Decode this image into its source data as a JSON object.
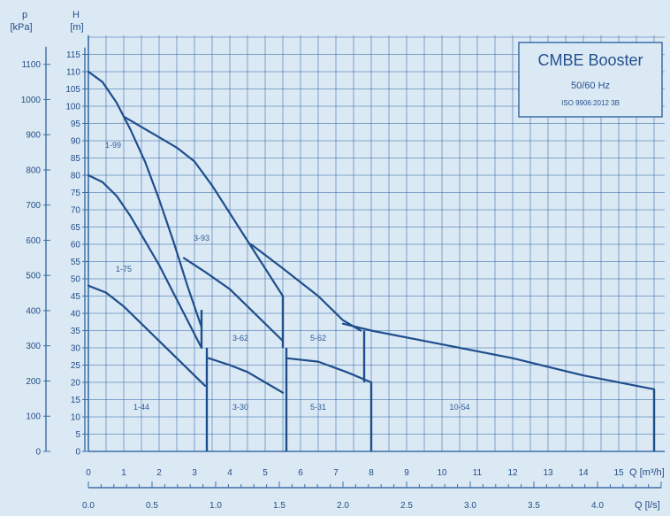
{
  "chart_data": {
    "type": "line",
    "title": "CMBE Booster",
    "subtitle": "50/60 Hz",
    "standard": "ISO 9906:2012 3B",
    "y_left_label": [
      "p",
      "[kPa]"
    ],
    "y_right_label": [
      "H",
      "[m]"
    ],
    "x_label": "Q [m³/h]",
    "x2_label": "Q [l/s]",
    "x_ticks": [
      "0",
      "1",
      "2",
      "3",
      "4",
      "5",
      "6",
      "7",
      "8",
      "9",
      "10",
      "11",
      "12",
      "13",
      "14",
      "15"
    ],
    "x2_ticks": [
      "0.0",
      "0.5",
      "1.0",
      "1.5",
      "2.0",
      "2.5",
      "3.0",
      "3.5",
      "4.0"
    ],
    "h_ticks": [
      "0",
      "5",
      "10",
      "15",
      "20",
      "25",
      "30",
      "35",
      "40",
      "45",
      "50",
      "55",
      "60",
      "65",
      "70",
      "75",
      "80",
      "85",
      "90",
      "95",
      "100",
      "105",
      "110",
      "115"
    ],
    "p_ticks": [
      "0",
      "100",
      "200",
      "300",
      "400",
      "500",
      "600",
      "700",
      "800",
      "900",
      "1000",
      "1100"
    ],
    "xlim": [
      0,
      16.5
    ],
    "ylim": [
      0,
      120
    ],
    "grid": true,
    "series": [
      {
        "name": "1-99",
        "points": [
          [
            0,
            110
          ],
          [
            0.4,
            107
          ],
          [
            0.8,
            101
          ],
          [
            1.2,
            93
          ],
          [
            1.6,
            84
          ],
          [
            2.0,
            73
          ],
          [
            2.4,
            61
          ],
          [
            2.8,
            48
          ],
          [
            3.2,
            36
          ]
        ]
      },
      {
        "name": "1-75",
        "points": [
          [
            0,
            80
          ],
          [
            0.4,
            78
          ],
          [
            0.8,
            74
          ],
          [
            1.2,
            68
          ],
          [
            1.6,
            61
          ],
          [
            2.0,
            54
          ],
          [
            2.4,
            46
          ],
          [
            2.8,
            38
          ],
          [
            3.2,
            30
          ]
        ]
      },
      {
        "name": "1-44",
        "points": [
          [
            0,
            48
          ],
          [
            0.5,
            46
          ],
          [
            1.0,
            42
          ],
          [
            1.5,
            37
          ],
          [
            2.0,
            32
          ],
          [
            2.5,
            27
          ],
          [
            3.0,
            22
          ],
          [
            3.3,
            19
          ]
        ]
      },
      {
        "name": "3-93",
        "points": [
          [
            1.0,
            97
          ],
          [
            1.5,
            94
          ],
          [
            2.0,
            91
          ],
          [
            2.5,
            88
          ],
          [
            3.0,
            84
          ],
          [
            3.5,
            77
          ],
          [
            4.0,
            69
          ],
          [
            4.5,
            61
          ],
          [
            5.0,
            53
          ],
          [
            5.5,
            45
          ]
        ]
      },
      {
        "name": "3-62",
        "points": [
          [
            2.7,
            56
          ],
          [
            3.3,
            52
          ],
          [
            4.0,
            47
          ],
          [
            4.6,
            41
          ],
          [
            5.2,
            35
          ],
          [
            5.5,
            32
          ]
        ]
      },
      {
        "name": "3-30",
        "points": [
          [
            3.4,
            27
          ],
          [
            4.0,
            25
          ],
          [
            4.5,
            23
          ],
          [
            5.0,
            20
          ],
          [
            5.5,
            17
          ]
        ]
      },
      {
        "name": "5-62",
        "points": [
          [
            4.6,
            60
          ],
          [
            5.5,
            53
          ],
          [
            6.5,
            45
          ],
          [
            7.2,
            38
          ],
          [
            7.7,
            35
          ]
        ]
      },
      {
        "name": "5-31",
        "points": [
          [
            5.6,
            27
          ],
          [
            6.5,
            26
          ],
          [
            7.3,
            23
          ],
          [
            8.0,
            20
          ]
        ]
      },
      {
        "name": "10-54",
        "points": [
          [
            7.2,
            37
          ],
          [
            8.0,
            35
          ],
          [
            10.0,
            31
          ],
          [
            12.0,
            27
          ],
          [
            14.0,
            22
          ],
          [
            16.0,
            18
          ]
        ]
      }
    ],
    "vertical_limits": [
      {
        "x": 3.2,
        "y_from": 41,
        "y_to": 30
      },
      {
        "x": 3.35,
        "y_from": 30,
        "y_to": 0
      },
      {
        "x": 5.5,
        "y_from": 45,
        "y_to": 30
      },
      {
        "x": 5.6,
        "y_from": 30,
        "y_to": 0
      },
      {
        "x": 7.8,
        "y_from": 35,
        "y_to": 20
      },
      {
        "x": 8.0,
        "y_from": 20,
        "y_to": 0
      },
      {
        "x": 16.0,
        "y_from": 18,
        "y_to": 0
      }
    ],
    "curve_labels": [
      {
        "text": "1-99",
        "x": 0.7,
        "y": 88
      },
      {
        "text": "1-75",
        "x": 1.0,
        "y": 52
      },
      {
        "text": "1-44",
        "x": 1.5,
        "y": 12
      },
      {
        "text": "3-93",
        "x": 3.2,
        "y": 61
      },
      {
        "text": "3-62",
        "x": 4.3,
        "y": 32
      },
      {
        "text": "3-30",
        "x": 4.3,
        "y": 12
      },
      {
        "text": "5-62",
        "x": 6.5,
        "y": 32
      },
      {
        "text": "5-31",
        "x": 6.5,
        "y": 12
      },
      {
        "text": "10-54",
        "x": 10.5,
        "y": 12
      }
    ],
    "colors": {
      "background": "#dbe9f4",
      "grid": "#3d6da8",
      "curve": "#1f4e8c",
      "text": "#244d86"
    }
  }
}
